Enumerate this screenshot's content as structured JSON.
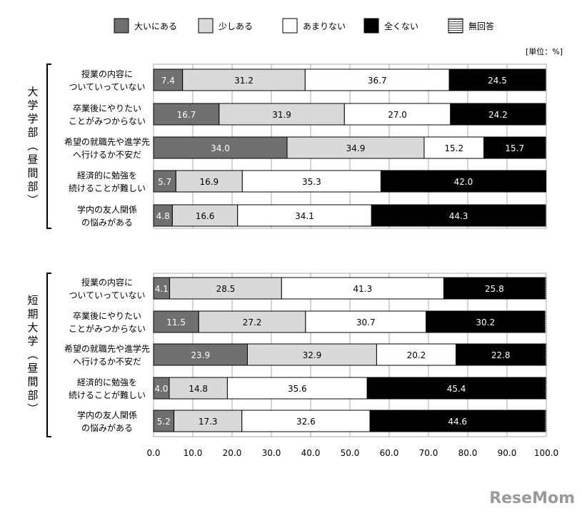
{
  "chart_data": [
    {
      "type": "bar",
      "stacked": "horizontal-100",
      "group_label": "大学学部（昼間部）",
      "categories": [
        [
          "授業の内容に",
          "ついていっていない"
        ],
        [
          "卒業後にやりたい",
          "ことがみつからない"
        ],
        [
          "希望の就職先や進学先",
          "へ行けるか不安だ"
        ],
        [
          "経済的に勉強を",
          "続けることが難しい"
        ],
        [
          "学内の友人関係",
          "の悩みがある"
        ]
      ],
      "series": [
        {
          "name": "大いにある",
          "values": [
            7.4,
            16.7,
            34.0,
            5.7,
            4.8
          ]
        },
        {
          "name": "少しある",
          "values": [
            31.2,
            31.9,
            34.9,
            16.9,
            16.6
          ]
        },
        {
          "name": "あまりない",
          "values": [
            36.7,
            27.0,
            15.2,
            35.3,
            34.1
          ]
        },
        {
          "name": "全くない",
          "values": [
            24.5,
            24.2,
            15.7,
            42.0,
            44.3
          ]
        },
        {
          "name": "無回答",
          "values": [
            null,
            null,
            null,
            null,
            null
          ]
        }
      ]
    },
    {
      "type": "bar",
      "stacked": "horizontal-100",
      "group_label": "短期大学（昼間部）",
      "categories": [
        [
          "授業の内容に",
          "ついていっていない"
        ],
        [
          "卒業後にやりたい",
          "ことがみつからない"
        ],
        [
          "希望の就職先や進学先",
          "へ行けるか不安だ"
        ],
        [
          "経済的に勉強を",
          "続けることが難しい"
        ],
        [
          "学内の友人関係",
          "の悩みがある"
        ]
      ],
      "series": [
        {
          "name": "大いにある",
          "values": [
            4.1,
            11.5,
            23.9,
            4.0,
            5.2
          ]
        },
        {
          "name": "少しある",
          "values": [
            28.5,
            27.2,
            32.9,
            14.8,
            17.3
          ]
        },
        {
          "name": "あまりない",
          "values": [
            41.3,
            30.7,
            20.2,
            35.6,
            32.6
          ]
        },
        {
          "name": "全くない",
          "values": [
            25.8,
            30.2,
            22.8,
            45.4,
            44.6
          ]
        },
        {
          "name": "無回答",
          "values": [
            0.2,
            0.2,
            0.2,
            0.2,
            0.2
          ]
        }
      ]
    }
  ],
  "legend": {
    "items": [
      "大いにある",
      "少しある",
      "あまりない",
      "全くない",
      "無回答"
    ],
    "placement": "top"
  },
  "unit_label": "[単位：%]",
  "x_axis": {
    "range": [
      0,
      100
    ],
    "ticks": [
      "0.0",
      "10.0",
      "20.0",
      "30.0",
      "40.0",
      "50.0",
      "60.0",
      "70.0",
      "80.0",
      "90.0",
      "100.0"
    ],
    "grid": true
  },
  "colors": {
    "大いにある": "#707070",
    "少しある": "#d9d9d9",
    "あまりない": "#ffffff",
    "全くない": "#000000",
    "無回答": "#ffffff"
  },
  "watermark": "ReseMom"
}
